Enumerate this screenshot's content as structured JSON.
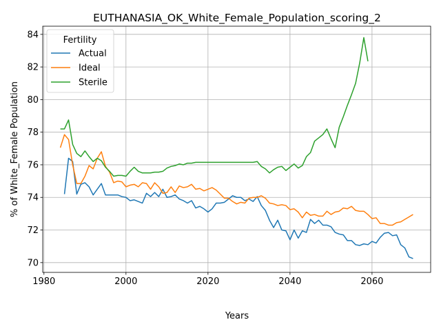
{
  "chart_data": {
    "type": "line",
    "title": "EUTHANASIA_OK_White_Female_Population_scoring_2",
    "xlabel": "Years",
    "ylabel": "% of White_Female Population",
    "xlim": [
      1979.7,
      2074.3
    ],
    "ylim": [
      69.4,
      84.5
    ],
    "xticks": [
      1980,
      2000,
      2020,
      2040,
      2060
    ],
    "yticks": [
      70,
      72,
      74,
      76,
      78,
      80,
      82,
      84
    ],
    "grid": true,
    "legend": {
      "title": "Fertility",
      "position": "top-left"
    },
    "series": [
      {
        "name": "Actual",
        "color": "#1f77b4",
        "x": [
          1985,
          1986,
          1987,
          1988,
          1989,
          1990,
          1991,
          1992,
          1993,
          1994,
          1995,
          1996,
          1997,
          1998,
          1999,
          2000,
          2001,
          2002,
          2003,
          2004,
          2005,
          2006,
          2007,
          2008,
          2009,
          2010,
          2011,
          2012,
          2013,
          2014,
          2015,
          2016,
          2017,
          2018,
          2019,
          2020,
          2021,
          2022,
          2023,
          2024,
          2025,
          2026,
          2027,
          2028,
          2029,
          2030,
          2031,
          2032,
          2033,
          2034,
          2035,
          2036,
          2037,
          2038,
          2039,
          2040,
          2041,
          2042,
          2043,
          2044,
          2045,
          2046,
          2047,
          2048,
          2049,
          2050,
          2051,
          2052,
          2053,
          2054,
          2055,
          2056,
          2057,
          2058,
          2059,
          2060,
          2061,
          2062,
          2063,
          2064,
          2065,
          2066,
          2067,
          2068,
          2069,
          2070
        ],
        "values": [
          74.2,
          76.4,
          76.2,
          74.2,
          74.8,
          74.9,
          74.65,
          74.15,
          74.5,
          74.85,
          74.15,
          74.15,
          74.15,
          74.15,
          74.05,
          74.0,
          73.8,
          73.85,
          73.75,
          73.65,
          74.25,
          74.05,
          74.3,
          74.05,
          74.5,
          74.0,
          74.05,
          74.15,
          73.9,
          73.8,
          73.65,
          73.8,
          73.35,
          73.45,
          73.3,
          73.1,
          73.3,
          73.65,
          73.65,
          73.7,
          73.9,
          74.1,
          74.0,
          74.0,
          73.8,
          73.9,
          73.75,
          74.05,
          73.5,
          73.2,
          72.6,
          72.15,
          72.6,
          72.0,
          71.95,
          71.4,
          72.0,
          71.5,
          71.95,
          71.85,
          72.65,
          72.4,
          72.6,
          72.3,
          72.3,
          72.2,
          71.85,
          71.75,
          71.7,
          71.35,
          71.35,
          71.1,
          71.05,
          71.15,
          71.1,
          71.3,
          71.2,
          71.55,
          71.8,
          71.85,
          71.65,
          71.7,
          71.1,
          70.9,
          70.35,
          70.25
        ]
      },
      {
        "name": "Ideal",
        "color": "#ff7f0e",
        "x": [
          1984,
          1985,
          1986,
          1987,
          1988,
          1989,
          1990,
          1991,
          1992,
          1993,
          1994,
          1995,
          1996,
          1997,
          1998,
          1999,
          2000,
          2001,
          2002,
          2003,
          2004,
          2005,
          2006,
          2007,
          2008,
          2009,
          2010,
          2011,
          2012,
          2013,
          2014,
          2015,
          2016,
          2017,
          2018,
          2019,
          2020,
          2021,
          2022,
          2023,
          2024,
          2025,
          2026,
          2027,
          2028,
          2029,
          2030,
          2031,
          2032,
          2033,
          2034,
          2035,
          2036,
          2037,
          2038,
          2039,
          2040,
          2041,
          2042,
          2043,
          2044,
          2045,
          2046,
          2047,
          2048,
          2049,
          2050,
          2051,
          2052,
          2053,
          2054,
          2055,
          2056,
          2057,
          2058,
          2059,
          2060,
          2061,
          2062,
          2063,
          2064,
          2065,
          2066,
          2067,
          2068,
          2069,
          2070
        ],
        "values": [
          77.05,
          77.85,
          77.55,
          76.0,
          74.85,
          74.85,
          75.3,
          75.95,
          75.75,
          76.4,
          76.8,
          75.9,
          75.55,
          74.9,
          75.0,
          74.95,
          74.65,
          74.75,
          74.8,
          74.65,
          74.9,
          74.85,
          74.5,
          74.9,
          74.65,
          74.25,
          74.3,
          74.65,
          74.3,
          74.7,
          74.6,
          74.65,
          74.8,
          74.5,
          74.55,
          74.4,
          74.5,
          74.6,
          74.45,
          74.2,
          73.95,
          73.95,
          73.75,
          73.6,
          73.7,
          73.65,
          73.95,
          74.0,
          74.0,
          74.1,
          73.95,
          73.65,
          73.6,
          73.5,
          73.55,
          73.5,
          73.25,
          73.3,
          73.1,
          72.75,
          73.1,
          72.9,
          72.95,
          72.85,
          72.85,
          73.15,
          72.95,
          73.1,
          73.15,
          73.35,
          73.3,
          73.45,
          73.2,
          73.15,
          73.15,
          72.95,
          72.7,
          72.75,
          72.4,
          72.4,
          72.3,
          72.3,
          72.45,
          72.5,
          72.65,
          72.8,
          72.95
        ]
      },
      {
        "name": "Sterile",
        "color": "#2ca02c",
        "x": [
          1984,
          1985,
          1986,
          1987,
          1988,
          1989,
          1990,
          1991,
          1992,
          1993,
          1994,
          1995,
          1996,
          1997,
          1998,
          1999,
          2000,
          2001,
          2002,
          2003,
          2004,
          2005,
          2006,
          2007,
          2008,
          2009,
          2010,
          2011,
          2012,
          2013,
          2014,
          2015,
          2016,
          2017,
          2018,
          2019,
          2020,
          2021,
          2022,
          2023,
          2024,
          2025,
          2026,
          2027,
          2028,
          2029,
          2030,
          2031,
          2032,
          2033,
          2034,
          2035,
          2036,
          2037,
          2038,
          2039,
          2040,
          2041,
          2042,
          2043,
          2044,
          2045,
          2046,
          2047,
          2048,
          2049,
          2050,
          2051,
          2052,
          2053,
          2054,
          2055,
          2056,
          2057,
          2058,
          2059
        ],
        "values": [
          78.2,
          78.2,
          78.75,
          77.25,
          76.7,
          76.5,
          76.85,
          76.5,
          76.2,
          76.4,
          76.25,
          75.85,
          75.6,
          75.3,
          75.35,
          75.35,
          75.3,
          75.6,
          75.85,
          75.6,
          75.5,
          75.5,
          75.5,
          75.55,
          75.55,
          75.6,
          75.8,
          75.9,
          75.95,
          76.05,
          76.0,
          76.1,
          76.1,
          76.15,
          76.15,
          76.15,
          76.15,
          76.15,
          76.15,
          76.15,
          76.15,
          76.15,
          76.15,
          76.15,
          76.15,
          76.15,
          76.15,
          76.15,
          76.2,
          75.9,
          75.75,
          75.5,
          75.7,
          75.85,
          75.9,
          75.65,
          75.85,
          76.05,
          75.8,
          75.95,
          76.5,
          76.75,
          77.45,
          77.65,
          77.85,
          78.2,
          77.6,
          77.05,
          78.3,
          78.95,
          79.65,
          80.3,
          81.0,
          82.25,
          83.8,
          82.35
        ]
      }
    ]
  }
}
